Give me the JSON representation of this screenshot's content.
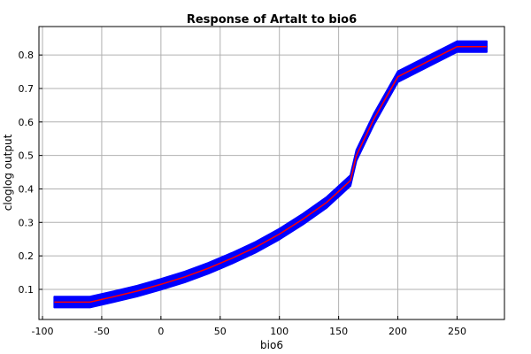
{
  "chart_data": {
    "type": "line",
    "title": "Response of Artalt to bio6",
    "xlabel": "bio6",
    "ylabel": "cloglog output",
    "xlim": [
      -103,
      290
    ],
    "ylim": [
      0.01,
      0.885
    ],
    "x_ticks": [
      -100,
      -50,
      0,
      50,
      100,
      150,
      200,
      250
    ],
    "y_ticks": [
      0.1,
      0.2,
      0.3,
      0.4,
      0.5,
      0.6,
      0.7,
      0.8
    ],
    "grid": true,
    "band_color": "#0000ff",
    "line_color": "#ff0000",
    "band_halfwidth": 0.016,
    "series": [
      {
        "x": [
          -90,
          -60,
          -40,
          -20,
          0,
          20,
          40,
          60,
          80,
          100,
          120,
          140,
          160,
          165,
          180,
          200,
          225,
          250,
          275
        ],
        "y": [
          0.062,
          0.062,
          0.078,
          0.095,
          0.115,
          0.137,
          0.163,
          0.193,
          0.226,
          0.265,
          0.31,
          0.36,
          0.425,
          0.5,
          0.61,
          0.735,
          0.78,
          0.825,
          0.825
        ]
      }
    ]
  }
}
